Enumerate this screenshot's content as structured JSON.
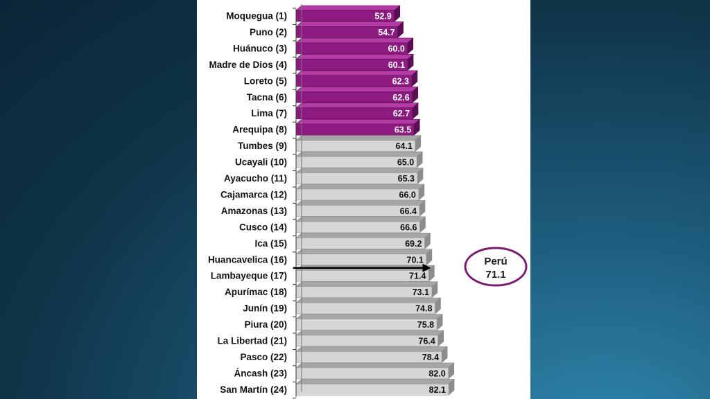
{
  "chart_data": {
    "type": "bar",
    "orientation": "horizontal",
    "categories": [
      "Moquegua (1)",
      "Puno (2)",
      "Huánuco (3)",
      "Madre de Dios (4)",
      "Loreto (5)",
      "Tacna (6)",
      "Lima (7)",
      "Arequipa (8)",
      "Tumbes (9)",
      "Ucayali (10)",
      "Ayacucho (11)",
      "Cajamarca (12)",
      "Amazonas (13)",
      "Cusco (14)",
      "Ica (15)",
      "Huancavelica (16)",
      "Lambayeque (17)",
      "Apurímac (18)",
      "Junín (19)",
      "Piura (20)",
      "La Libertad (21)",
      "Pasco (22)",
      "Áncash (23)",
      "San Martín (24)"
    ],
    "values": [
      52.9,
      54.7,
      60.0,
      60.1,
      62.3,
      62.6,
      62.7,
      63.5,
      64.1,
      65.0,
      65.3,
      66.0,
      66.4,
      66.6,
      69.2,
      70.1,
      71.4,
      73.1,
      74.8,
      75.8,
      76.4,
      78.4,
      82.0,
      82.1
    ],
    "value_labels": [
      "52.9",
      "54.7",
      "60.0",
      "60.1",
      "62.3",
      "62.6",
      "62.7",
      "63.5",
      "64.1",
      "65.0",
      "65.3",
      "66.0",
      "66.4",
      "66.6",
      "69.2",
      "70.1",
      "71.4",
      "73.1",
      "74.8",
      "75.8",
      "76.4",
      "78.4",
      "82.0",
      "82.1"
    ],
    "highlight_count": 8,
    "xlim": [
      0,
      84
    ],
    "reference": {
      "label": "Perú",
      "value_text": "71.1",
      "value": 71.1
    },
    "grid": false,
    "colors": {
      "highlight_face": "#8e1b82",
      "highlight_dark": "#5a0f52",
      "highlight_top": "#b43aa6",
      "normal_face": "#d6d6d6",
      "normal_dark": "#8c8c8c",
      "normal_top": "#a6a6a6",
      "reference_ellipse": "#7a1a72",
      "reference_line": "#000000"
    }
  }
}
